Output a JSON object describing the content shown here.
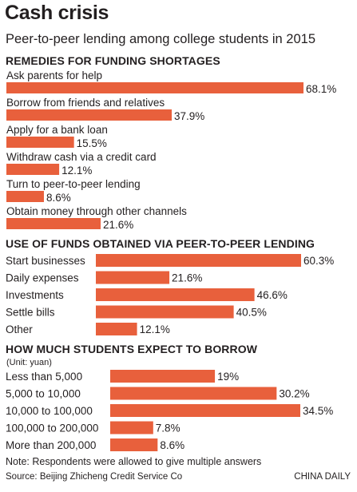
{
  "title": "Cash crisis",
  "subtitle": "Peer-to-peer lending among college students in 2015",
  "unit_note": "(Unit: yuan)",
  "note": "Note: Respondents were allowed to give multiple answers",
  "source": "Source: Beijing Zhicheng Credit Service Co",
  "credit": "CHINA DAILY",
  "colors": {
    "bar": "#e8603c",
    "text": "#231f20",
    "background": "#ffffff"
  },
  "chart_data": [
    {
      "type": "bar",
      "orientation": "horizontal",
      "title": "REMEDIES FOR FUNDING SHORTAGES",
      "categories": [
        "Ask parents for help",
        "Borrow from friends and relatives",
        "Apply for a bank loan",
        "Withdraw cash via a credit card",
        "Turn to peer-to-peer lending",
        "Obtain money through other channels"
      ],
      "values": [
        68.1,
        37.9,
        15.5,
        12.1,
        8.6,
        21.6
      ],
      "value_labels": [
        "68.1%",
        "37.9%",
        "15.5%",
        "12.1%",
        "8.6%",
        "21.6%"
      ],
      "label_position": "above-bar",
      "grid": false
    },
    {
      "type": "bar",
      "orientation": "horizontal",
      "title": "USE OF FUNDS OBTAINED VIA PEER-TO-PEER LENDING",
      "categories": [
        "Start businesses",
        "Daily expenses",
        "Investments",
        "Settle bills",
        "Other"
      ],
      "values": [
        60.3,
        21.6,
        46.6,
        40.5,
        12.1
      ],
      "value_labels": [
        "60.3%",
        "21.6%",
        "46.6%",
        "40.5%",
        "12.1%"
      ],
      "label_position": "left-of-bar",
      "grid": false
    },
    {
      "type": "bar",
      "orientation": "horizontal",
      "title": "HOW MUCH STUDENTS EXPECT TO BORROW",
      "categories": [
        "Less than 5,000",
        "5,000 to 10,000",
        "10,000 to 100,000",
        "100,000 to 200,000",
        "More than 200,000"
      ],
      "values": [
        19,
        30.2,
        34.5,
        7.8,
        8.6
      ],
      "value_labels": [
        "19%",
        "30.2%",
        "34.5%",
        "7.8%",
        "8.6%"
      ],
      "label_position": "left-of-bar",
      "grid": false
    }
  ]
}
